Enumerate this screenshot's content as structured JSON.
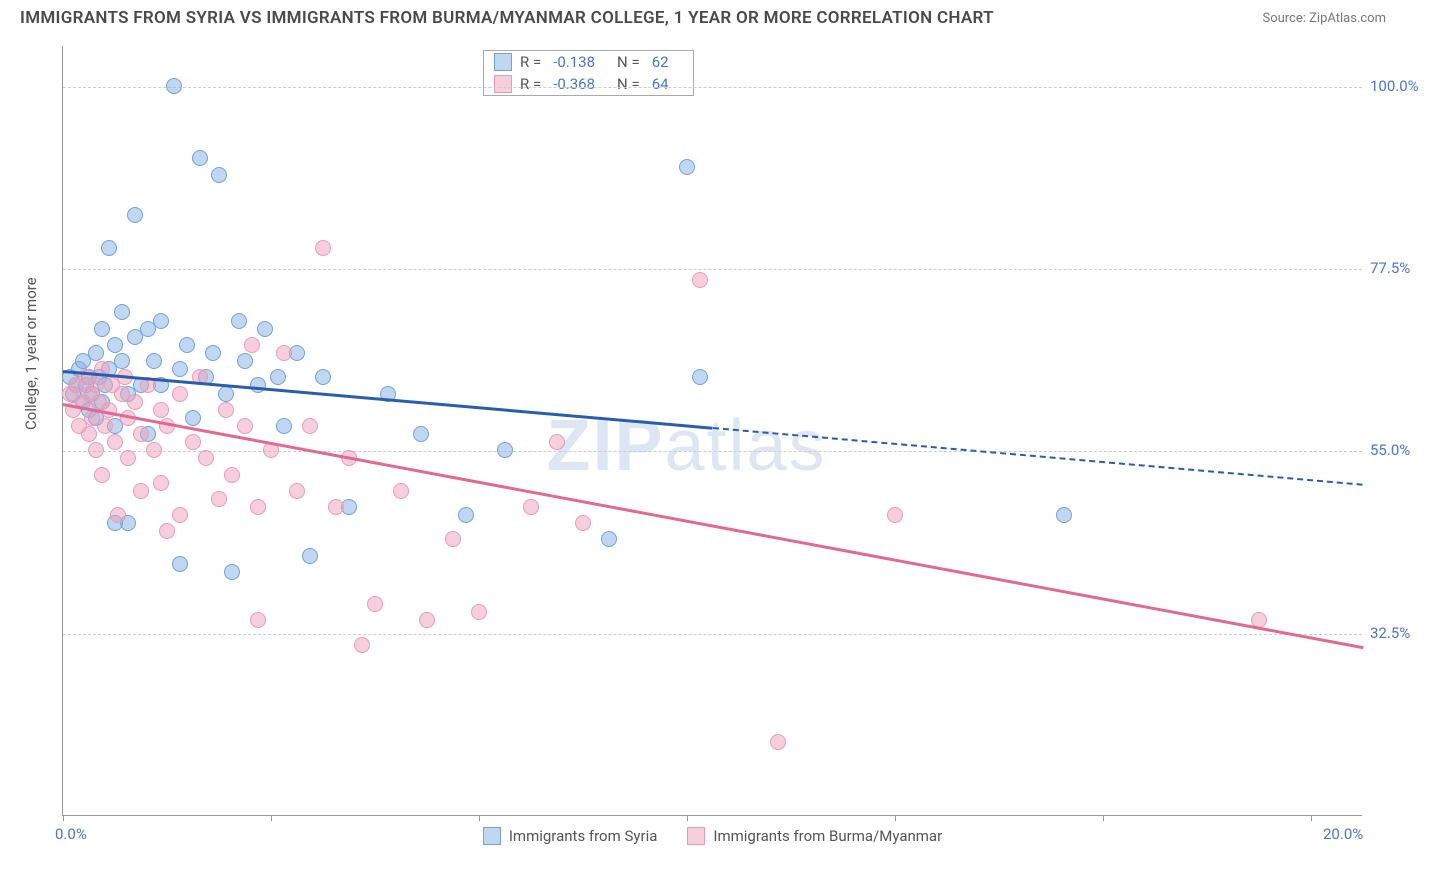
{
  "title": "IMMIGRANTS FROM SYRIA VS IMMIGRANTS FROM BURMA/MYANMAR COLLEGE, 1 YEAR OR MORE CORRELATION CHART",
  "source": "Source: ZipAtlas.com",
  "ylabel": "College, 1 year or more",
  "watermark": {
    "bold": "ZIP",
    "light": "atlas"
  },
  "chart": {
    "type": "scatter-with-regression",
    "background_color": "#ffffff",
    "grid_color": "#cccccc",
    "axis_color": "#999999",
    "tick_label_color": "#4a74d6",
    "xlim": [
      0,
      20
    ],
    "ylim": [
      10,
      105
    ],
    "xticks": [
      0,
      3.2,
      6.4,
      9.6,
      12.8,
      16.0,
      19.2
    ],
    "xticks_labeled": [
      {
        "v": 0,
        "t": "0.0%"
      },
      {
        "v": 20,
        "t": "20.0%"
      }
    ],
    "yticks": [
      32.5,
      55.0,
      77.5,
      100.0
    ],
    "ytick_labels": [
      "32.5%",
      "55.0%",
      "77.5%",
      "100.0%"
    ],
    "marker_radius": 8,
    "line_width": 2.5,
    "series": [
      {
        "name": "Immigrants from Syria",
        "color_fill": "rgba(140,180,230,0.55)",
        "color_stroke": "#6fa3dc",
        "line_color": "#2a5db0",
        "R": "-0.138",
        "N": "62",
        "trend": {
          "x1": 0,
          "y1": 65,
          "x2": 10,
          "y2": 58,
          "x2_dash": 20,
          "y2_dash": 51
        },
        "points": [
          [
            0.1,
            64
          ],
          [
            0.15,
            62
          ],
          [
            0.2,
            63
          ],
          [
            0.25,
            65
          ],
          [
            0.3,
            61
          ],
          [
            0.3,
            66
          ],
          [
            0.35,
            63
          ],
          [
            0.4,
            64
          ],
          [
            0.4,
            60
          ],
          [
            0.45,
            62
          ],
          [
            0.5,
            67
          ],
          [
            0.5,
            59
          ],
          [
            0.55,
            64
          ],
          [
            0.6,
            61
          ],
          [
            0.6,
            70
          ],
          [
            0.65,
            63
          ],
          [
            0.7,
            65
          ],
          [
            0.7,
            80
          ],
          [
            0.8,
            68
          ],
          [
            0.8,
            58
          ],
          [
            0.9,
            66
          ],
          [
            0.9,
            72
          ],
          [
            1.0,
            62
          ],
          [
            1.0,
            46
          ],
          [
            1.1,
            69
          ],
          [
            1.1,
            84
          ],
          [
            1.2,
            63
          ],
          [
            1.3,
            70
          ],
          [
            1.3,
            57
          ],
          [
            1.4,
            66
          ],
          [
            1.5,
            71
          ],
          [
            1.5,
            63
          ],
          [
            1.7,
            100
          ],
          [
            1.8,
            65
          ],
          [
            1.8,
            41
          ],
          [
            1.9,
            68
          ],
          [
            2.0,
            59
          ],
          [
            2.1,
            91
          ],
          [
            2.2,
            64
          ],
          [
            2.3,
            67
          ],
          [
            2.4,
            89
          ],
          [
            2.5,
            62
          ],
          [
            2.6,
            40
          ],
          [
            2.7,
            71
          ],
          [
            2.8,
            66
          ],
          [
            3.0,
            63
          ],
          [
            3.1,
            70
          ],
          [
            3.3,
            64
          ],
          [
            3.4,
            58
          ],
          [
            3.6,
            67
          ],
          [
            3.8,
            42
          ],
          [
            4.0,
            64
          ],
          [
            4.4,
            48
          ],
          [
            5.0,
            62
          ],
          [
            5.5,
            57
          ],
          [
            6.2,
            47
          ],
          [
            6.8,
            55
          ],
          [
            8.4,
            44
          ],
          [
            9.6,
            90
          ],
          [
            9.8,
            64
          ],
          [
            15.4,
            47
          ],
          [
            0.8,
            46
          ]
        ]
      },
      {
        "name": "Immigrants from Burma/Myanmar",
        "color_fill": "rgba(240,160,185,0.5)",
        "color_stroke": "#e99bb5",
        "line_color": "#e06a94",
        "R": "-0.368",
        "N": "64",
        "trend": {
          "x1": 0,
          "y1": 61,
          "x2": 20,
          "y2": 31
        },
        "points": [
          [
            0.1,
            62
          ],
          [
            0.15,
            60
          ],
          [
            0.2,
            63
          ],
          [
            0.25,
            58
          ],
          [
            0.3,
            61
          ],
          [
            0.35,
            64
          ],
          [
            0.4,
            57
          ],
          [
            0.4,
            62
          ],
          [
            0.45,
            59
          ],
          [
            0.5,
            55
          ],
          [
            0.5,
            63
          ],
          [
            0.55,
            61
          ],
          [
            0.6,
            52
          ],
          [
            0.6,
            65
          ],
          [
            0.65,
            58
          ],
          [
            0.7,
            60
          ],
          [
            0.75,
            63
          ],
          [
            0.8,
            56
          ],
          [
            0.85,
            47
          ],
          [
            0.9,
            62
          ],
          [
            0.95,
            64
          ],
          [
            1.0,
            59
          ],
          [
            1.0,
            54
          ],
          [
            1.1,
            61
          ],
          [
            1.2,
            57
          ],
          [
            1.2,
            50
          ],
          [
            1.3,
            63
          ],
          [
            1.4,
            55
          ],
          [
            1.5,
            60
          ],
          [
            1.5,
            51
          ],
          [
            1.6,
            58
          ],
          [
            1.6,
            45
          ],
          [
            1.8,
            62
          ],
          [
            1.8,
            47
          ],
          [
            2.0,
            56
          ],
          [
            2.1,
            64
          ],
          [
            2.2,
            54
          ],
          [
            2.4,
            49
          ],
          [
            2.5,
            60
          ],
          [
            2.6,
            52
          ],
          [
            2.8,
            58
          ],
          [
            2.9,
            68
          ],
          [
            3.0,
            48
          ],
          [
            3.2,
            55
          ],
          [
            3.4,
            67
          ],
          [
            3.6,
            50
          ],
          [
            3.8,
            58
          ],
          [
            4.0,
            80
          ],
          [
            4.2,
            48
          ],
          [
            4.4,
            54
          ],
          [
            4.6,
            31
          ],
          [
            4.8,
            36
          ],
          [
            5.2,
            50
          ],
          [
            5.6,
            34
          ],
          [
            6.0,
            44
          ],
          [
            6.4,
            35
          ],
          [
            7.2,
            48
          ],
          [
            7.6,
            56
          ],
          [
            8.0,
            46
          ],
          [
            9.8,
            76
          ],
          [
            11.0,
            19
          ],
          [
            12.8,
            47
          ],
          [
            18.4,
            34
          ],
          [
            3.0,
            34
          ]
        ]
      }
    ]
  },
  "legend_bottom": [
    "Immigrants from Syria",
    "Immigrants from Burma/Myanmar"
  ]
}
